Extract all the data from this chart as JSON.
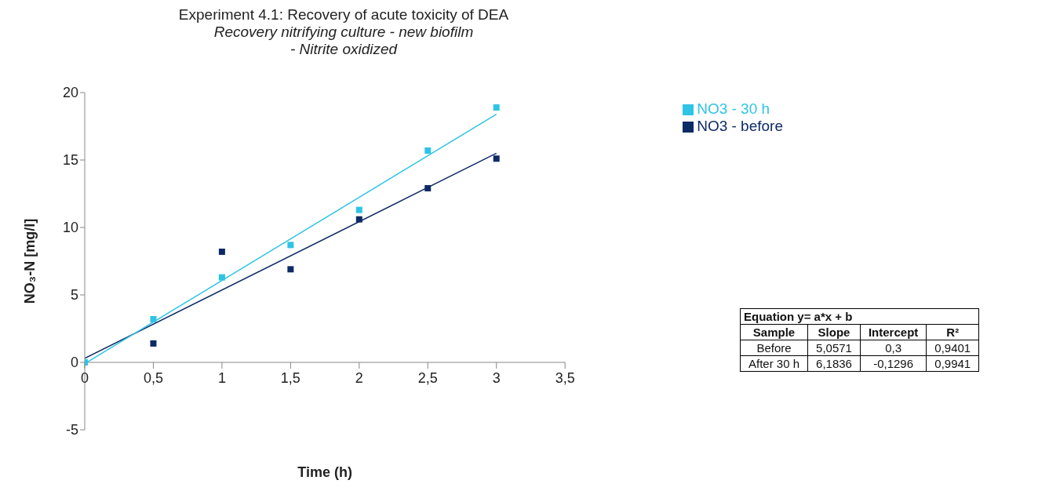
{
  "chart_data": {
    "type": "scatter",
    "title": "Experiment 4.1: Recovery of acute toxicity of DEA",
    "subtitle": "Recovery nitrifying culture - new biofilm\n- Nitrite oxidized",
    "xlabel": "Time (h)",
    "ylabel": "NO₃-N [mg/l]",
    "series": [
      {
        "name": "NO3 - before",
        "color": "#0e2a66",
        "type": "scatter",
        "x": [
          0.5,
          1,
          1.5,
          2,
          2.5,
          3
        ],
        "values": [
          1.4,
          8.2,
          6.9,
          10.6,
          12.9,
          15.1
        ]
      },
      {
        "name": "NO3 - 30 h",
        "color": "#2ec4e6",
        "type": "scatter",
        "x": [
          0,
          0.5,
          1,
          1.5,
          2,
          2.5,
          3
        ],
        "values": [
          0,
          3.2,
          6.3,
          8.7,
          11.3,
          15.7,
          18.9
        ]
      },
      {
        "color": "#0e2a66",
        "type": "line",
        "marker": "none",
        "x": [
          0,
          3
        ],
        "values": [
          0.3,
          15.5
        ]
      },
      {
        "color": "#2ec4e6",
        "type": "line",
        "marker": "none",
        "x": [
          0,
          3
        ],
        "values": [
          -0.1,
          18.4
        ]
      }
    ],
    "xlim": [
      0,
      3.5
    ],
    "xticks": [
      0,
      {
        "value": 0.5,
        "label": "0,5"
      },
      1,
      {
        "value": 1.5,
        "label": "1,5"
      },
      2,
      {
        "value": 2.5,
        "label": "2,5"
      },
      3,
      {
        "value": 3.5,
        "label": "3,5"
      }
    ],
    "ylim": [
      -5,
      20
    ],
    "yticks": [
      -5,
      0,
      5,
      10,
      15,
      20
    ],
    "grid": false,
    "legend": "top right",
    "marker": "square",
    "line_style": "solid",
    "annotations": [
      "Equation y= a*x + b",
      "Sample",
      "Slope",
      "Intercept",
      "R²",
      "Before",
      "5,0571",
      "0,3",
      "0,9401",
      "After 30 h",
      "6,1836",
      "-0,1296",
      "0,9941"
    ]
  }
}
